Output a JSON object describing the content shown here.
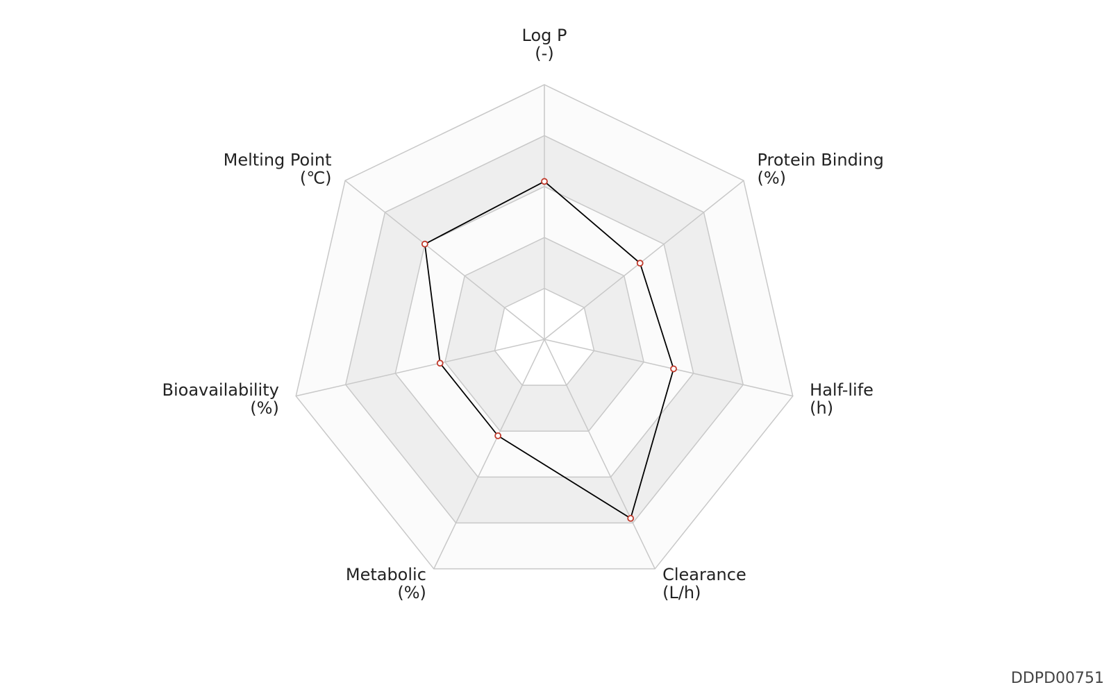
{
  "chart_data": {
    "type": "radar",
    "categories": [
      "Log P",
      "Protein Binding",
      "Half-life",
      "Clearance",
      "Metabolic",
      "Bioavailability",
      "Melting Point"
    ],
    "units": [
      "(-)",
      "(%)",
      "(h)",
      "(L/h)",
      "(%)",
      "(%)",
      "(℃)"
    ],
    "values": [
      3.1,
      2.4,
      2.6,
      3.9,
      2.1,
      2.1,
      3.0
    ],
    "color": "#000000",
    "marker_color": "#c0392b",
    "rlim": [
      0,
      5
    ],
    "rticks": [
      1,
      2,
      3,
      4,
      5
    ],
    "grid": true
  },
  "watermark": "DDPD00751"
}
